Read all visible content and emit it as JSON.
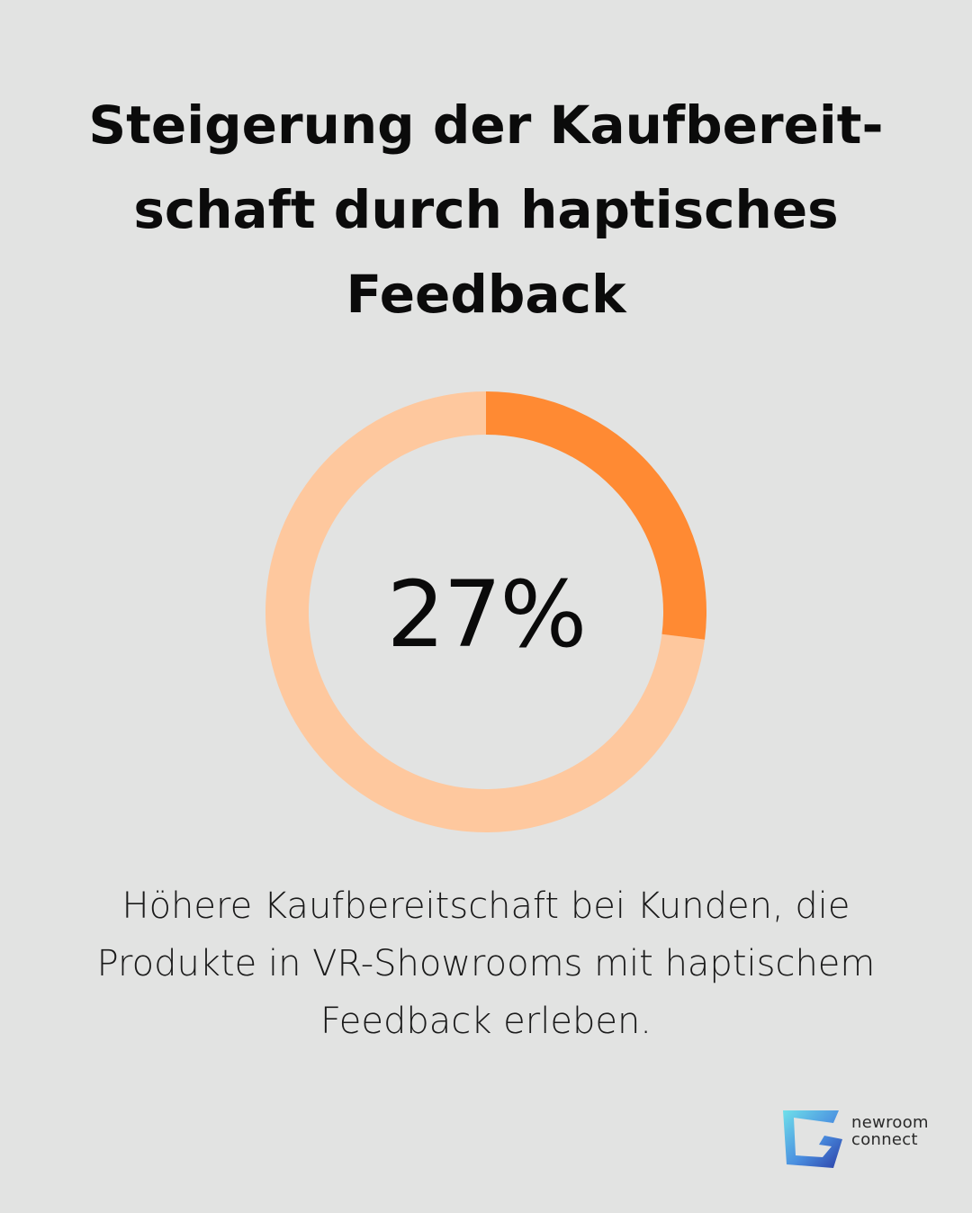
{
  "title": "Steigerung der Kaufbereit-schaft durch haptisches Feedback",
  "title_lines": [
    "Steigerung der Kaufbereit-",
    "schaft durch haptisches",
    "Feedback"
  ],
  "chart_data": {
    "type": "pie",
    "variant": "donut",
    "values": [
      27,
      73
    ],
    "center_label": "27%",
    "colors": [
      "#ff8a33",
      "#fec89e"
    ]
  },
  "caption_lines": [
    "Höhere Kaufbereitschaft bei Kunden, die",
    "Produkte in VR-Showrooms mit haptischem",
    "Feedback erleben."
  ],
  "logo": {
    "line1": "newroom",
    "line2": "connect",
    "colors": [
      "#5fd3e6",
      "#3a6fd8",
      "#2a3fa8"
    ]
  },
  "background": "#e2e3e2"
}
